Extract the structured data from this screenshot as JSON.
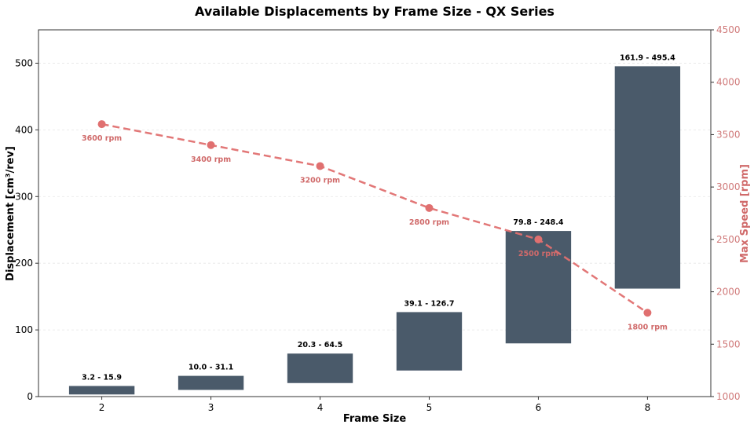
{
  "chart_data": {
    "type": "bar",
    "title": "Available Displacements by Frame Size - QX Series",
    "xlabel": "Frame Size",
    "ylabel": "Displacement [cm³/rev]",
    "y2label": "Max Speed [rpm]",
    "categories": [
      "2",
      "3",
      "4",
      "5",
      "6",
      "8"
    ],
    "ylim": [
      0,
      550
    ],
    "y2lim": [
      1000,
      4500
    ],
    "yticks": [
      0,
      100,
      200,
      300,
      400,
      500
    ],
    "y2ticks": [
      1000,
      1500,
      2000,
      2500,
      3000,
      3500,
      4000,
      4500
    ],
    "grid": true,
    "series": [
      {
        "type": "floating-bar",
        "axis": "left",
        "color": "#4a5a6a",
        "low": [
          3.2,
          10.0,
          20.3,
          39.1,
          79.8,
          161.9
        ],
        "high": [
          15.9,
          31.1,
          64.5,
          126.7,
          248.4,
          495.4
        ],
        "labels": [
          "3.2 - 15.9",
          "10.0 - 31.1",
          "20.3 - 64.5",
          "39.1 - 126.7",
          "79.8 - 248.4",
          "161.9 - 495.4"
        ]
      },
      {
        "type": "line",
        "axis": "right",
        "style": "dashed",
        "color": "#e07070",
        "label_color": "#d06a6a",
        "values": [
          3600,
          3400,
          3200,
          2800,
          2500,
          1800
        ],
        "labels": [
          "3600 rpm",
          "3400 rpm",
          "3200 rpm",
          "2800 rpm",
          "2500 rpm",
          "1800 rpm"
        ]
      }
    ]
  }
}
